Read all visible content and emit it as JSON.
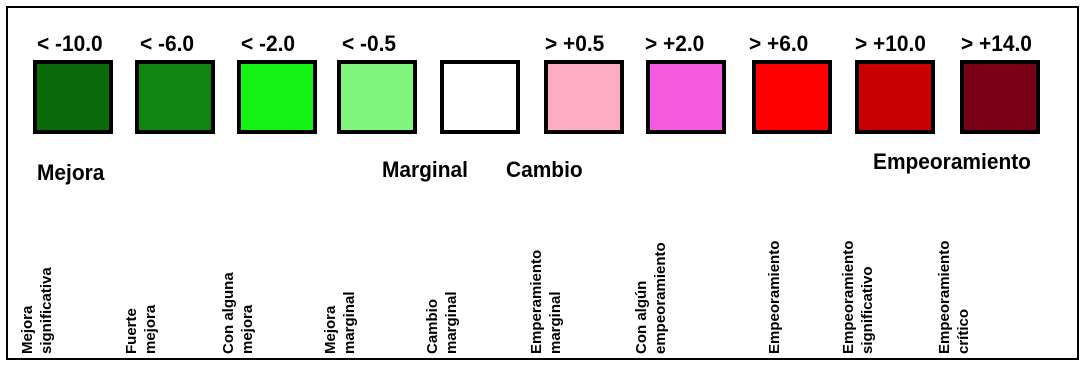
{
  "legend": {
    "thresholds": [
      "< -10.0",
      "< -6.0",
      "< -2.0",
      "< -0.5",
      "> +0.5",
      "> +2.0",
      "> +6.0",
      "> +10.0",
      "> +14.0"
    ],
    "swatches": [
      {
        "color": "#0b6b0b",
        "threshold": "< -10.0",
        "label_line1": "Mejora",
        "label_line2": "significativa"
      },
      {
        "color": "#108510",
        "threshold": "< -6.0",
        "label_line1": "Fuerte",
        "label_line2": "mejora"
      },
      {
        "color": "#13f213",
        "threshold": "< -2.0",
        "label_line1": "Con alguna",
        "label_line2": "mejora"
      },
      {
        "color": "#80f57e",
        "threshold": "< -0.5",
        "label_line1": "Mejora",
        "label_line2": "marginal"
      },
      {
        "color": "#ffffff",
        "threshold": "",
        "label_line1": "Cambio",
        "label_line2": "marginal"
      },
      {
        "color": "#fcadc4",
        "threshold": "> +0.5",
        "label_line1": "Emperamiento",
        "label_line2": "marginal"
      },
      {
        "color": "#f55ae0",
        "threshold": "> +2.0",
        "label_line1": "Con algún",
        "label_line2": "empeoramiento"
      },
      {
        "color": "#ff0000",
        "threshold": "> +6.0",
        "label_line1": "Empeoramiento",
        "label_line2": ""
      },
      {
        "color": "#c80000",
        "threshold": "> +10.0",
        "label_line1": "Empeoramiento",
        "label_line2": "significativo"
      },
      {
        "color": "#7a0018",
        "threshold": "> +14.0",
        "label_line1": "Empeoramiento",
        "label_line2": "crítico"
      }
    ],
    "groups": {
      "mejora": "Mejora",
      "marginal": "Marginal",
      "cambio": "Cambio",
      "empeoramiento": "Empeoramiento"
    }
  }
}
